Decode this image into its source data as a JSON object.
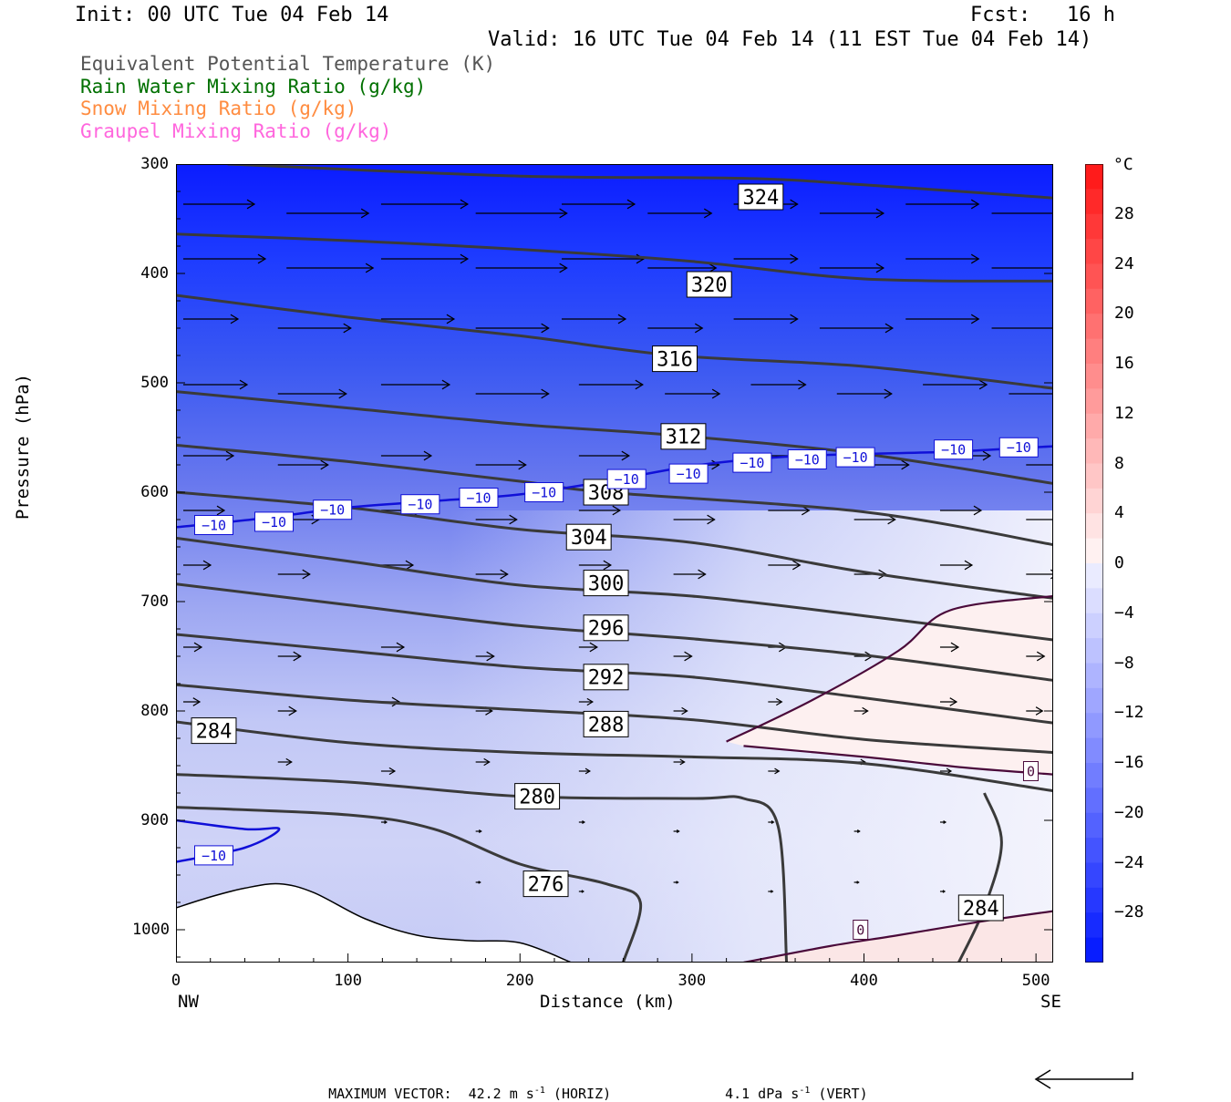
{
  "header": {
    "init": "Init: 00 UTC Tue 04 Feb 14",
    "fcst": "Fcst:   16 h",
    "valid": "Valid: 16 UTC Tue 04 Feb 14 (11 EST Tue 04 Feb 14)"
  },
  "legend": [
    {
      "label": "Equivalent Potential Temperature (K)",
      "color": "#555555"
    },
    {
      "label": "Rain Water Mixing Ratio (g/kg)",
      "color": "#007000"
    },
    {
      "label": "Snow Mixing Ratio (g/kg)",
      "color": "#ff8c40"
    },
    {
      "label": "Graupel Mixing Ratio (g/kg)",
      "color": "#ff66dd"
    }
  ],
  "chart_data": {
    "type": "cross-section contour",
    "xlabel": "Distance (km)",
    "ylabel": "Pressure (hPa)",
    "x_ticks": [
      "0",
      "100",
      "200",
      "300",
      "400",
      "500"
    ],
    "x_end_labels": {
      "left": "NW",
      "right": "SE"
    },
    "xlim": [
      0,
      510
    ],
    "y_ticks": [
      "300",
      "400",
      "500",
      "600",
      "700",
      "800",
      "900",
      "1000"
    ],
    "ylim": [
      300,
      1030
    ],
    "theta_e_contours": [
      {
        "value": 324,
        "label": "324",
        "points": [
          [
            30,
            300
          ],
          [
            200,
            311
          ],
          [
            330,
            313
          ],
          [
            400,
            319
          ],
          [
            510,
            331
          ]
        ]
      },
      {
        "value": 320,
        "label": "320",
        "points": [
          [
            0,
            364
          ],
          [
            100,
            370
          ],
          [
            200,
            378
          ],
          [
            300,
            389
          ],
          [
            400,
            405
          ],
          [
            510,
            407
          ]
        ]
      },
      {
        "value": 316,
        "label": "316",
        "points": [
          [
            0,
            420
          ],
          [
            100,
            440
          ],
          [
            200,
            457
          ],
          [
            290,
            475
          ],
          [
            400,
            485
          ],
          [
            510,
            505
          ]
        ]
      },
      {
        "value": 312,
        "label": "312",
        "points": [
          [
            0,
            508
          ],
          [
            100,
            523
          ],
          [
            200,
            538
          ],
          [
            290,
            548
          ],
          [
            400,
            565
          ],
          [
            510,
            592
          ]
        ]
      },
      {
        "value": 308,
        "label": "308",
        "points": [
          [
            0,
            557
          ],
          [
            100,
            572
          ],
          [
            200,
            590
          ],
          [
            250,
            600
          ],
          [
            400,
            618
          ],
          [
            510,
            648
          ]
        ]
      },
      {
        "value": 304,
        "label": "304",
        "points": [
          [
            0,
            600
          ],
          [
            100,
            614
          ],
          [
            200,
            634
          ],
          [
            300,
            646
          ],
          [
            400,
            673
          ],
          [
            510,
            697
          ]
        ]
      },
      {
        "value": 300,
        "label": "300",
        "points": [
          [
            0,
            642
          ],
          [
            100,
            663
          ],
          [
            200,
            685
          ],
          [
            300,
            695
          ],
          [
            400,
            713
          ],
          [
            510,
            735
          ]
        ]
      },
      {
        "value": 296,
        "label": "296",
        "points": [
          [
            0,
            684
          ],
          [
            100,
            703
          ],
          [
            200,
            722
          ],
          [
            300,
            734
          ],
          [
            400,
            749
          ],
          [
            510,
            772
          ]
        ]
      },
      {
        "value": 292,
        "label": "292",
        "points": [
          [
            0,
            730
          ],
          [
            100,
            745
          ],
          [
            200,
            760
          ],
          [
            300,
            769
          ],
          [
            400,
            788
          ],
          [
            510,
            811
          ]
        ]
      },
      {
        "value": 288,
        "label": "288",
        "points": [
          [
            0,
            776
          ],
          [
            100,
            790
          ],
          [
            200,
            799
          ],
          [
            300,
            808
          ],
          [
            400,
            826
          ],
          [
            510,
            838
          ]
        ]
      },
      {
        "value": 284,
        "label": "284",
        "points": [
          [
            0,
            810
          ],
          [
            100,
            829
          ],
          [
            200,
            838
          ],
          [
            300,
            842
          ],
          [
            400,
            848
          ],
          [
            510,
            873
          ]
        ]
      },
      {
        "value": 280,
        "label": "280",
        "points": [
          [
            0,
            858
          ],
          [
            100,
            865
          ],
          [
            200,
            878
          ],
          [
            300,
            880
          ],
          [
            330,
            880
          ],
          [
            350,
            905
          ],
          [
            355,
            1030
          ]
        ]
      },
      {
        "value": 276,
        "label": "276",
        "points": [
          [
            0,
            888
          ],
          [
            100,
            895
          ],
          [
            150,
            908
          ],
          [
            200,
            940
          ],
          [
            250,
            958
          ],
          [
            270,
            975
          ],
          [
            260,
            1030
          ]
        ]
      },
      {
        "value": 284,
        "label": "284",
        "points": [
          [
            470,
            875
          ],
          [
            480,
            920
          ],
          [
            470,
            980
          ],
          [
            455,
            1030
          ]
        ]
      }
    ],
    "temperature_zero_contours": [
      {
        "label": "0",
        "points": [
          [
            320,
            828
          ],
          [
            370,
            790
          ],
          [
            420,
            745
          ],
          [
            450,
            708
          ],
          [
            510,
            695
          ]
        ]
      },
      {
        "label": "0",
        "points": [
          [
            330,
            832
          ],
          [
            400,
            842
          ],
          [
            460,
            852
          ],
          [
            510,
            858
          ]
        ]
      },
      {
        "label": "0",
        "points": [
          [
            330,
            1030
          ],
          [
            380,
            1015
          ],
          [
            420,
            1005
          ],
          [
            470,
            992
          ],
          [
            510,
            983
          ]
        ]
      }
    ],
    "temperature_minus10_contours": [
      {
        "label": "-10",
        "points": [
          [
            0,
            632
          ],
          [
            50,
            624
          ],
          [
            100,
            614
          ],
          [
            150,
            608
          ],
          [
            200,
            602
          ],
          [
            250,
            590
          ],
          [
            300,
            576
          ],
          [
            350,
            568
          ],
          [
            400,
            565
          ],
          [
            450,
            563
          ],
          [
            510,
            558
          ]
        ]
      },
      {
        "label": "-10",
        "points": [
          [
            0,
            900
          ],
          [
            40,
            908
          ],
          [
            60,
            908
          ],
          [
            40,
            925
          ],
          [
            0,
            938
          ]
        ]
      }
    ],
    "contour_labels_minus10": [
      {
        "x": 22,
        "p": 630
      },
      {
        "x": 57,
        "p": 627
      },
      {
        "x": 91,
        "p": 616
      },
      {
        "x": 142,
        "p": 611
      },
      {
        "x": 176,
        "p": 605
      },
      {
        "x": 214,
        "p": 600
      },
      {
        "x": 262,
        "p": 588
      },
      {
        "x": 298,
        "p": 583
      },
      {
        "x": 335,
        "p": 573
      },
      {
        "x": 367,
        "p": 570
      },
      {
        "x": 395,
        "p": 568
      },
      {
        "x": 452,
        "p": 561
      },
      {
        "x": 490,
        "p": 559
      },
      {
        "x": 22,
        "p": 932
      }
    ],
    "colorbar": {
      "unit": "°C",
      "ticks": [
        "28",
        "24",
        "20",
        "16",
        "12",
        "8",
        "4",
        "0",
        "−4",
        "−8",
        "−12",
        "−16",
        "−20",
        "−24",
        "−28"
      ],
      "range": [
        -32,
        32
      ]
    },
    "wind_vectors_note": "arrows point right, strongest aloft",
    "max_vector": {
      "label": "MAXIMUM VECTOR:",
      "horiz": "42.2 m s",
      "horiz_tail": " (HORIZ)",
      "vert": "4.1 dPa s",
      "vert_tail": " (VERT)",
      "exp": "-1"
    }
  }
}
